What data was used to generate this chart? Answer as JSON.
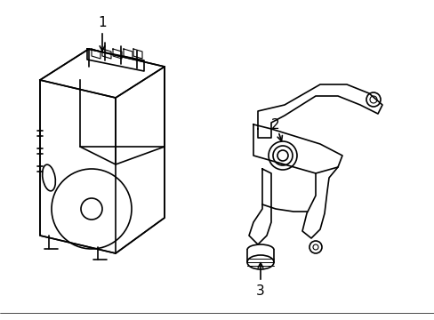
{
  "title": "",
  "background_color": "#ffffff",
  "line_color": "#000000",
  "line_width": 1.2,
  "label_1": "1",
  "label_2": "2",
  "label_3": "3",
  "label_fontsize": 11,
  "figsize": [
    4.89,
    3.6
  ],
  "dpi": 100
}
